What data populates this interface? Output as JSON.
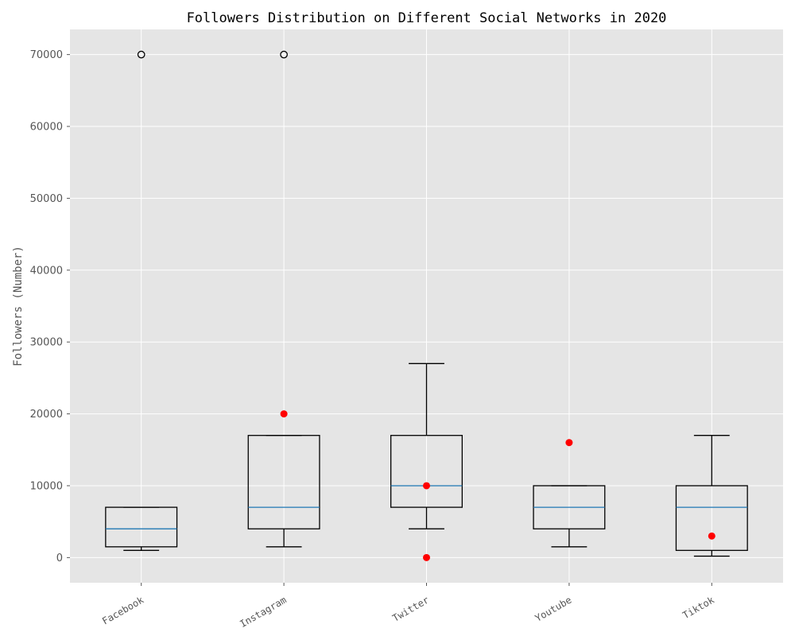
{
  "chart_data": {
    "type": "box",
    "title": "Followers Distribution on Different Social Networks in 2020",
    "xlabel": "",
    "ylabel": "Followers (Number)",
    "ylim": [
      -3500,
      73500
    ],
    "yticks": [
      0,
      10000,
      20000,
      30000,
      40000,
      50000,
      60000,
      70000
    ],
    "grid": true,
    "categories": [
      "Facebook",
      "Instagram",
      "Twitter",
      "Youtube",
      "Tiktok"
    ],
    "boxes": [
      {
        "category": "Facebook",
        "whisker_low": 1000,
        "q1": 1500,
        "median": 4000,
        "q3": 7000,
        "whisker_high": 7000,
        "outliers": [
          70000
        ]
      },
      {
        "category": "Instagram",
        "whisker_low": 1500,
        "q1": 4000,
        "median": 7000,
        "q3": 17000,
        "whisker_high": 17000,
        "outliers": [
          70000
        ]
      },
      {
        "category": "Twitter",
        "whisker_low": 4000,
        "q1": 7000,
        "median": 10000,
        "q3": 17000,
        "whisker_high": 27000,
        "outliers": []
      },
      {
        "category": "Youtube",
        "whisker_low": 1500,
        "q1": 4000,
        "median": 7000,
        "q3": 10000,
        "whisker_high": 10000,
        "outliers": []
      },
      {
        "category": "Tiktok",
        "whisker_low": 200,
        "q1": 1000,
        "median": 7000,
        "q3": 10000,
        "whisker_high": 17000,
        "outliers": []
      }
    ],
    "extra_points": [
      {
        "category": "Instagram",
        "value": 20000
      },
      {
        "category": "Twitter",
        "value": 10000
      },
      {
        "category": "Twitter",
        "value": 0
      },
      {
        "category": "Youtube",
        "value": 16000
      },
      {
        "category": "Tiktok",
        "value": 3000
      }
    ],
    "colors": {
      "plot_background": "#e5e5e5",
      "grid": "#ffffff",
      "box": "#000000",
      "median": "#1f77b4",
      "extra_points": "#ff0000",
      "outlier_edge": "#000000"
    }
  }
}
